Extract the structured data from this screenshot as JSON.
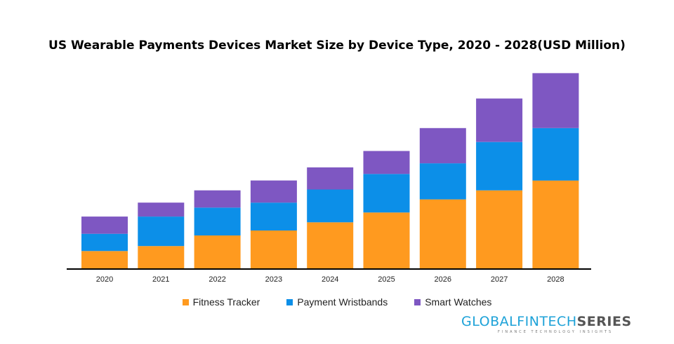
{
  "chart_data": {
    "type": "bar",
    "stacked": true,
    "title": "US Wearable Payments Devices Market Size by Device Type, 2020 - 2028(USD Million)",
    "xlabel": "",
    "ylabel": "",
    "categories": [
      "2020",
      "2021",
      "2022",
      "2023",
      "2024",
      "2025",
      "2026",
      "2027",
      "2028"
    ],
    "series": [
      {
        "name": "Fitness Tracker",
        "color": "#ff9a1f",
        "values": [
          22,
          28,
          41,
          47,
          57,
          69,
          85,
          96,
          108
        ]
      },
      {
        "name": "Payment Wristbands",
        "color": "#0c8fe8",
        "values": [
          21,
          36,
          34,
          34,
          40,
          47,
          44,
          59,
          64
        ]
      },
      {
        "name": "Smart Watches",
        "color": "#7e57c2",
        "values": [
          21,
          17,
          21,
          27,
          27,
          28,
          43,
          53,
          67
        ]
      }
    ],
    "ylim": [
      0,
      250
    ],
    "grid": false,
    "legend_position": "bottom"
  },
  "brand": {
    "name_part1": "GLOBALFINTECH",
    "name_part2": "SERIES",
    "tagline": "FINANCE TECHNOLOGY INSIGHTS"
  }
}
